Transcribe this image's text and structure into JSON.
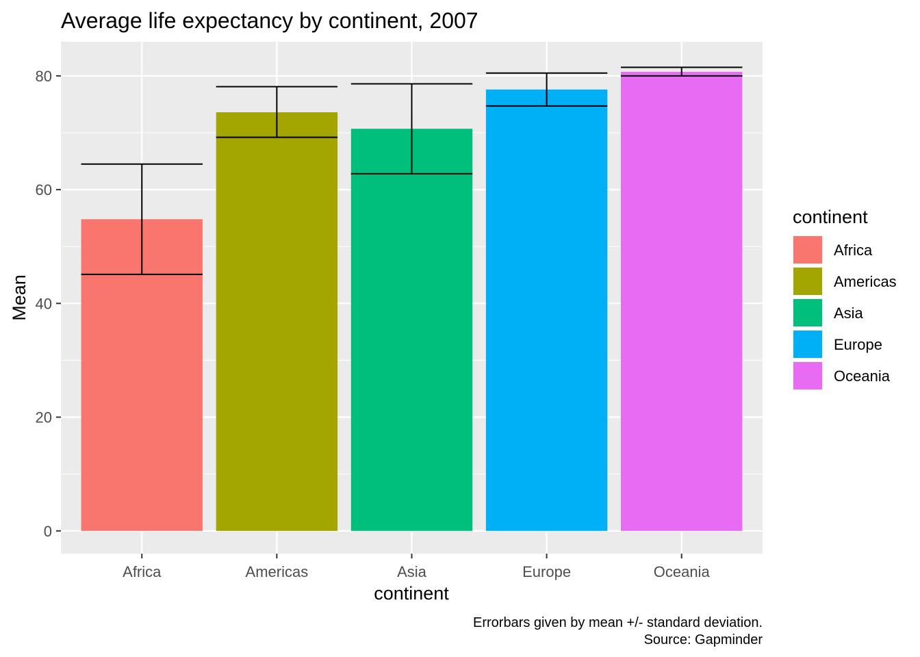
{
  "chart_data": {
    "type": "bar",
    "title": "Average life expectancy by continent, 2007",
    "xlabel": "continent",
    "ylabel": "Mean",
    "categories": [
      "Africa",
      "Americas",
      "Asia",
      "Europe",
      "Oceania"
    ],
    "values": [
      54.8,
      73.6,
      70.7,
      77.6,
      80.7
    ],
    "error_lower": [
      45.1,
      69.2,
      62.8,
      74.7,
      80.0
    ],
    "error_upper": [
      64.5,
      78.1,
      78.6,
      80.5,
      81.5
    ],
    "colors": [
      "#F8766D",
      "#A3A500",
      "#00BF7D",
      "#00B0F6",
      "#E76BF3"
    ],
    "ylim": [
      -4,
      86
    ],
    "yticks": [
      0,
      20,
      40,
      60,
      80
    ],
    "grid": true,
    "legend": {
      "title": "continent",
      "position": "right",
      "entries": [
        "Africa",
        "Americas",
        "Asia",
        "Europe",
        "Oceania"
      ]
    },
    "caption": [
      "Errorbars given by mean +/- standard deviation.",
      "Source: Gapminder"
    ]
  }
}
